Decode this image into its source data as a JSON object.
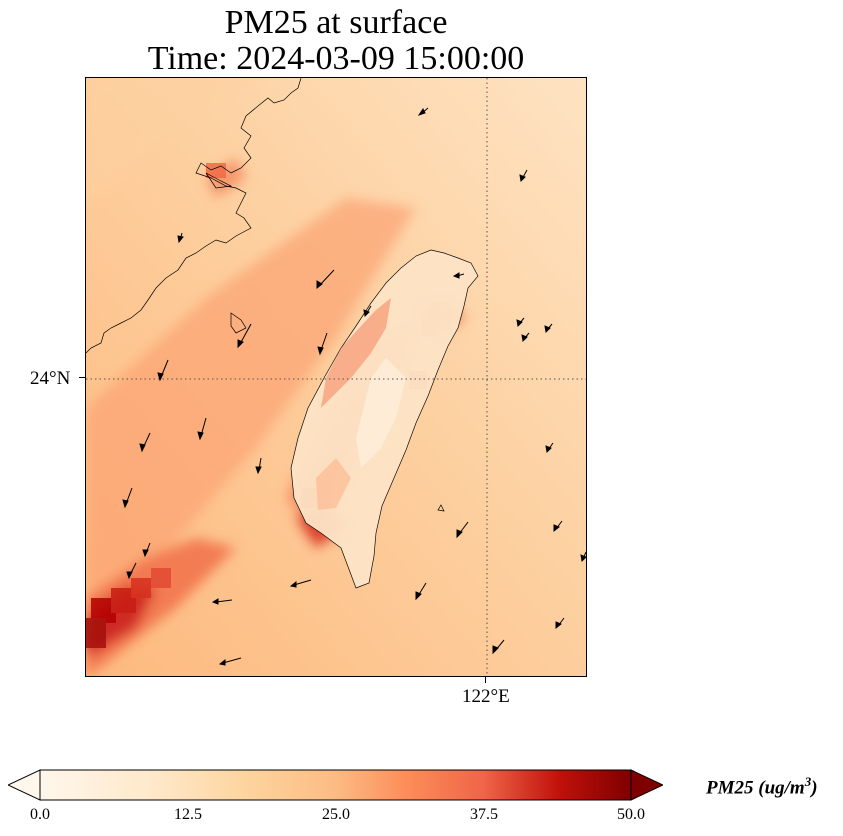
{
  "title": {
    "line1": "PM25 at surface",
    "line2": "Time: 2024-03-09 15:00:00"
  },
  "map": {
    "lat_tick_label": "24°N",
    "lon_tick_label": "122°E",
    "gridline_style": "dotted"
  },
  "colorbar": {
    "label": "PM25 (ug/m",
    "label_superscript": "3",
    "label_close": ")",
    "tick_labels": [
      "0.0",
      "12.5",
      "25.0",
      "37.5",
      "50.0"
    ],
    "min": 0,
    "max": 50,
    "extend": "both",
    "colormap": "OrRd",
    "colors": [
      "#fff7ec",
      "#fdd49e",
      "#fc8d59",
      "#d7301f",
      "#7f0000"
    ]
  }
}
